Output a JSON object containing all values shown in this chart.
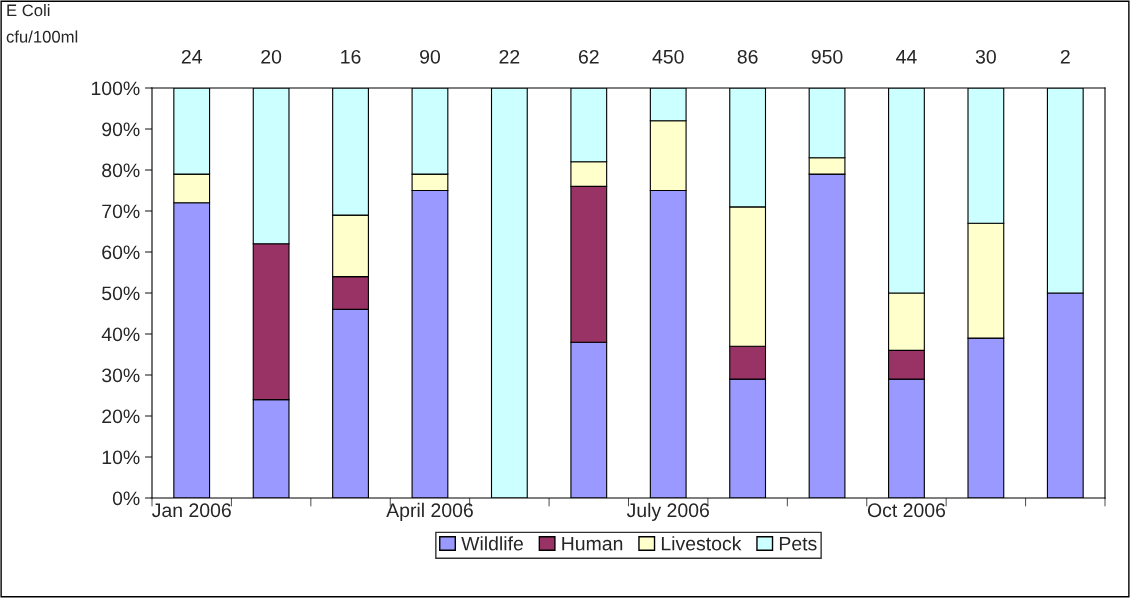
{
  "chart_data": {
    "type": "bar",
    "stacked": true,
    "categories": [
      "Jan 2006",
      null,
      null,
      "April 2006",
      null,
      null,
      "July 2006",
      null,
      null,
      "Oct 2006",
      null,
      null
    ],
    "series": [
      {
        "name": "Wildlife",
        "color": "#9999ff",
        "values": [
          72,
          24,
          46,
          75,
          null,
          38,
          75,
          29,
          79,
          29,
          39,
          50
        ]
      },
      {
        "name": "Human",
        "color": "#993366",
        "values": [
          null,
          38,
          8,
          null,
          null,
          38,
          null,
          8,
          null,
          7,
          null,
          null
        ]
      },
      {
        "name": "Livestock",
        "color": "#ffffcc",
        "values": [
          7,
          null,
          15,
          4,
          null,
          6,
          17,
          34,
          4,
          14,
          28,
          null
        ]
      },
      {
        "name": "Pets",
        "color": "#ccffff",
        "values": [
          21,
          38,
          31,
          21,
          100,
          18,
          8,
          29,
          17,
          50,
          33,
          50
        ]
      }
    ],
    "annotations": [
      "E Coli\ncfu/100ml",
      "24",
      "20",
      "16",
      "90",
      "22",
      "62",
      "450",
      "86",
      "950",
      "44",
      "30",
      "2"
    ],
    "ylim": [
      0,
      100
    ],
    "yticks": [
      {
        "value": 0,
        "label": "0%"
      },
      {
        "value": 10,
        "label": "10%"
      },
      {
        "value": 20,
        "label": "20%"
      },
      {
        "value": 30,
        "label": "30%"
      },
      {
        "value": 40,
        "label": "40%"
      },
      {
        "value": 50,
        "label": "50%"
      },
      {
        "value": 60,
        "label": "60%"
      },
      {
        "value": 70,
        "label": "70%"
      },
      {
        "value": 80,
        "label": "80%"
      },
      {
        "value": 90,
        "label": "90%"
      },
      {
        "value": 100,
        "label": "100%"
      }
    ],
    "grid": false,
    "legend": "bottom"
  }
}
